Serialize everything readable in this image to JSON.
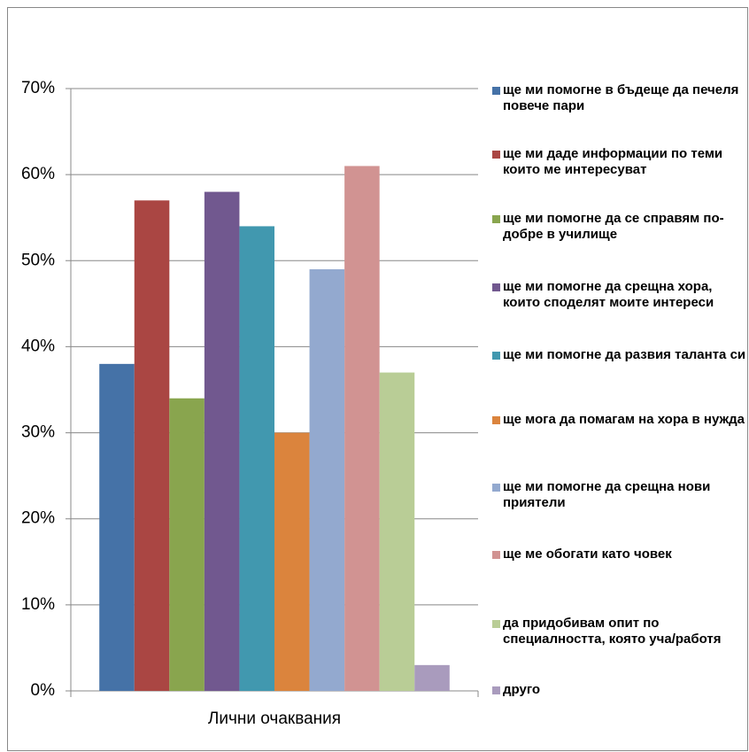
{
  "chart_data": {
    "type": "bar",
    "categories": [
      "Лични очаквания"
    ],
    "series": [
      {
        "name": "ще ми помогне в бъдеще да печеля повече пари",
        "color": "#4572a7",
        "values": [
          38
        ]
      },
      {
        "name": "ще ми даде информации по теми които ме интересуват",
        "color": "#aa4643",
        "values": [
          57
        ]
      },
      {
        "name": "ще ми помогне да се справям по-добре в училище",
        "color": "#89a54e",
        "values": [
          34
        ]
      },
      {
        "name": "ще ми помогне да срещна хора, които споделят моите интереси",
        "color": "#71588f",
        "values": [
          58
        ]
      },
      {
        "name": "ще ми помогне да развия таланта си",
        "color": "#4198af",
        "values": [
          54
        ]
      },
      {
        "name": "ще мога да помагам на хора в нужда",
        "color": "#db843d",
        "values": [
          30
        ]
      },
      {
        "name": "ще ми помогне да срещна нови приятели",
        "color": "#93a9cf",
        "values": [
          49
        ]
      },
      {
        "name": "ще ме обогати като човек",
        "color": "#d19392",
        "values": [
          61
        ]
      },
      {
        "name": "да придобивам опит по специалността, която уча/работя",
        "color": "#b9cd96",
        "values": [
          37
        ]
      },
      {
        "name": "друго",
        "color": "#a99bbd",
        "values": [
          3
        ]
      }
    ],
    "ylim": [
      0,
      70
    ],
    "yticks": [
      {
        "value": 0,
        "label": "0%"
      },
      {
        "value": 10,
        "label": "10%"
      },
      {
        "value": 20,
        "label": "20%"
      },
      {
        "value": 30,
        "label": "30%"
      },
      {
        "value": 40,
        "label": "40%"
      },
      {
        "value": 50,
        "label": "50%"
      },
      {
        "value": 60,
        "label": "60%"
      },
      {
        "value": 70,
        "label": "70%"
      }
    ],
    "grid": true,
    "legend": "right"
  }
}
